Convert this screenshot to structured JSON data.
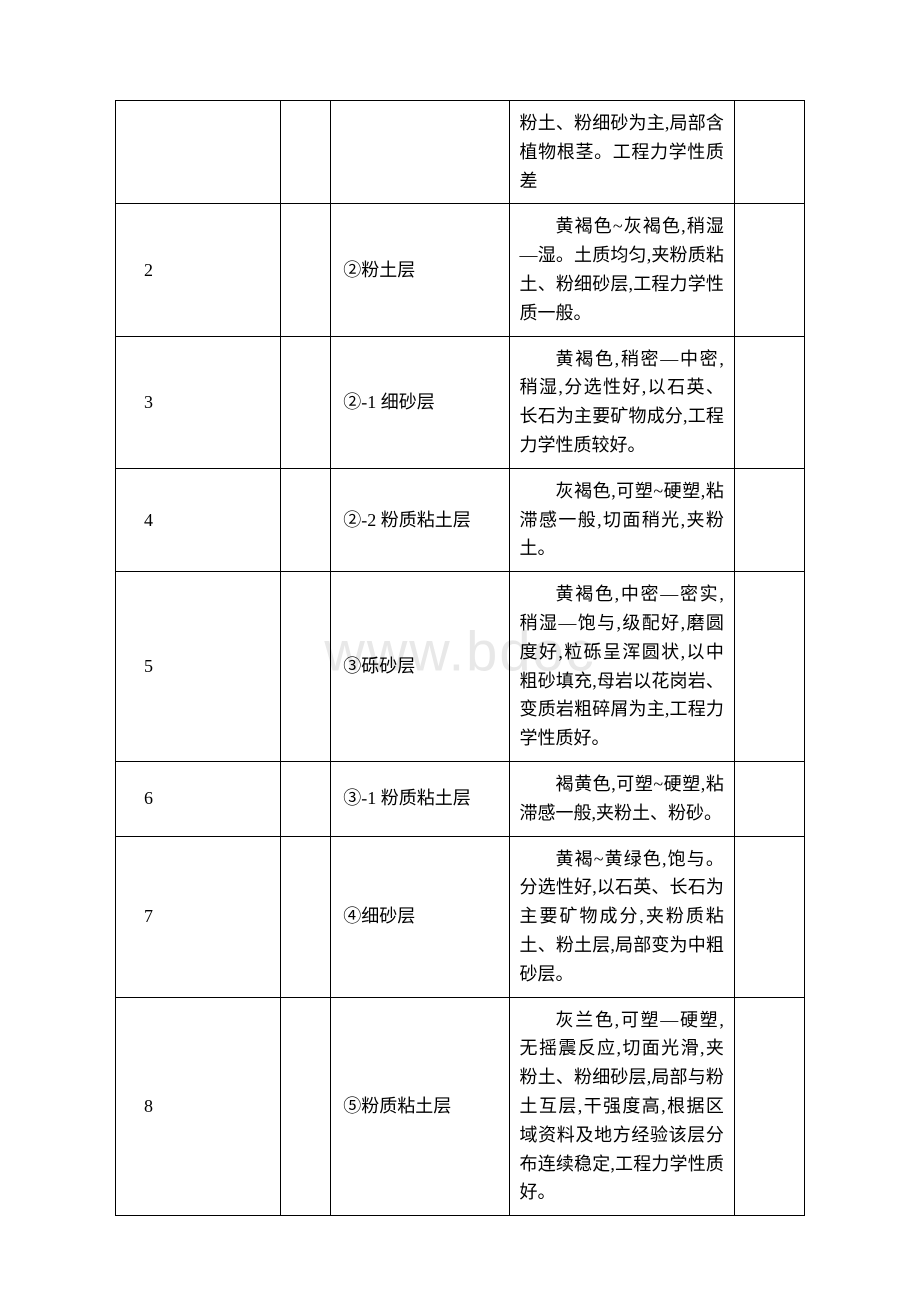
{
  "watermark": "www.bdoc",
  "table": {
    "columns": {
      "col1_width": 165,
      "col2_width": 50,
      "col3_width": 178,
      "col4_width": 225,
      "col5_width": 70
    },
    "border_color": "#000000",
    "font_size": 18,
    "text_color": "#000000",
    "background_color": "#ffffff",
    "rows": [
      {
        "seq": "",
        "layer": "",
        "desc": "粉土、粉细砂为主,局部含植物根茎。工程力学性质差",
        "desc_indent": false
      },
      {
        "seq": "2",
        "layer": "②粉土层",
        "desc": "黄褐色~灰褐色,稍湿—湿。土质均匀,夹粉质粘土、粉细砂层,工程力学性质一般。",
        "desc_indent": true
      },
      {
        "seq": "3",
        "layer": "②-1 细砂层",
        "desc": "黄褐色,稍密—中密,稍湿,分选性好,以石英、长石为主要矿物成分,工程力学性质较好。",
        "desc_indent": true
      },
      {
        "seq": "4",
        "layer": "②-2 粉质粘土层",
        "desc": "灰褐色,可塑~硬塑,粘滞感一般,切面稍光,夹粉土。",
        "desc_indent": true
      },
      {
        "seq": "5",
        "layer": "③砾砂层",
        "desc": "黄褐色,中密—密实,稍湿—饱与,级配好,磨圆度好,粒砾呈浑圆状,以中粗砂填充,母岩以花岗岩、变质岩粗碎屑为主,工程力学性质好。",
        "desc_indent": true
      },
      {
        "seq": "6",
        "layer": "③-1 粉质粘土层",
        "desc": "褐黄色,可塑~硬塑,粘滞感一般,夹粉土、粉砂。",
        "desc_indent": true
      },
      {
        "seq": "7",
        "layer": "④细砂层",
        "desc": "黄褐~黄绿色,饱与。分选性好,以石英、长石为主要矿物成分,夹粉质粘土、粉土层,局部变为中粗砂层。",
        "desc_indent": true
      },
      {
        "seq": "8",
        "layer": "⑤粉质粘土层",
        "desc": "灰兰色,可塑—硬塑,无摇震反应,切面光滑,夹粉土、粉细砂层,局部与粉土互层,干强度高,根据区域资料及地方经验该层分布连续稳定,工程力学性质好。",
        "desc_indent": true
      }
    ]
  }
}
